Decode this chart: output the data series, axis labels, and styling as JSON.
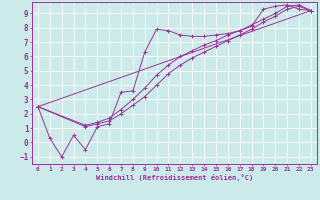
{
  "xlabel": "Windchill (Refroidissement éolien,°C)",
  "xlim": [
    -0.5,
    23.5
  ],
  "ylim": [
    -1.5,
    9.8
  ],
  "yticks": [
    -1,
    0,
    1,
    2,
    3,
    4,
    5,
    6,
    7,
    8,
    9
  ],
  "xticks": [
    0,
    1,
    2,
    3,
    4,
    5,
    6,
    7,
    8,
    9,
    10,
    11,
    12,
    13,
    14,
    15,
    16,
    17,
    18,
    19,
    20,
    21,
    22,
    23
  ],
  "bg_color": "#cceaea",
  "line_color": "#993399",
  "grid_color": "#aacccc",
  "series": [
    {
      "x": [
        0,
        1,
        2,
        3,
        4,
        5,
        6,
        7,
        8,
        9,
        10,
        11,
        12,
        13,
        14,
        15,
        16,
        17,
        18,
        19,
        20,
        21,
        22,
        23
      ],
      "y": [
        2.5,
        0.3,
        -1.0,
        0.5,
        -0.5,
        1.1,
        1.3,
        3.5,
        3.6,
        6.3,
        7.9,
        7.8,
        7.5,
        7.4,
        7.4,
        7.5,
        7.6,
        7.8,
        8.1,
        9.3,
        9.5,
        9.6,
        9.3,
        9.2
      ]
    },
    {
      "x": [
        0,
        23
      ],
      "y": [
        2.5,
        9.2
      ]
    },
    {
      "x": [
        0,
        4,
        5,
        6,
        7,
        8,
        9,
        10,
        11,
        12,
        13,
        14,
        15,
        16,
        17,
        18,
        19,
        20,
        21,
        22,
        23
      ],
      "y": [
        2.5,
        1.1,
        1.3,
        1.5,
        2.0,
        2.6,
        3.2,
        4.0,
        4.8,
        5.4,
        5.9,
        6.3,
        6.7,
        7.1,
        7.5,
        7.9,
        8.4,
        8.8,
        9.3,
        9.5,
        9.2
      ]
    },
    {
      "x": [
        0,
        4,
        5,
        6,
        7,
        8,
        9,
        10,
        11,
        12,
        13,
        14,
        15,
        16,
        17,
        18,
        19,
        20,
        21,
        22,
        23
      ],
      "y": [
        2.5,
        1.2,
        1.4,
        1.7,
        2.3,
        3.0,
        3.8,
        4.7,
        5.4,
        6.0,
        6.4,
        6.8,
        7.1,
        7.5,
        7.8,
        8.2,
        8.6,
        9.0,
        9.5,
        9.6,
        9.2
      ]
    }
  ]
}
